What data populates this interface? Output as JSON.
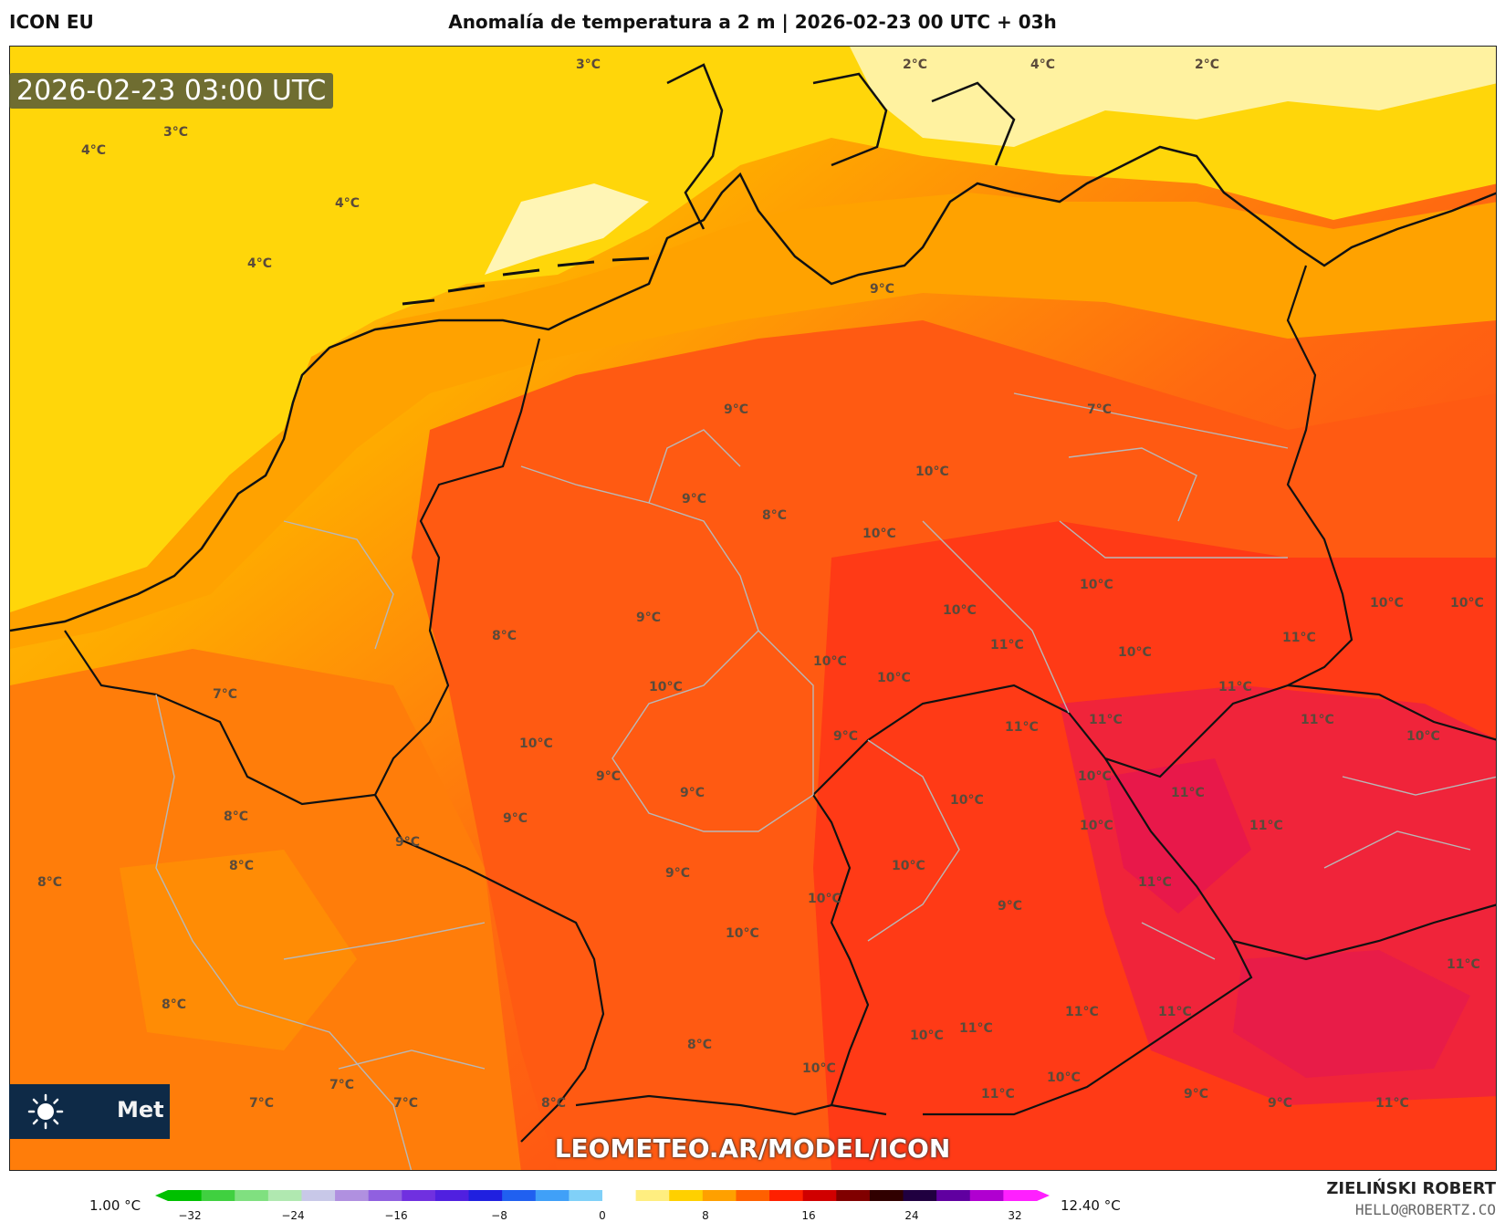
{
  "header": {
    "model": "ICON EU",
    "title": "Anomalía de temperatura a 2 m | 2026-02-23 00 UTC + 03h"
  },
  "map": {
    "timestamp": "2026-02-23 03:00 UTC",
    "watermark": "LEOMETEO.AR/MODEL/ICON",
    "logo_text": "Met",
    "logo_icon": "sun-icon",
    "isotherm_labels": [
      "3°C",
      "2°C",
      "4°C",
      "2°C",
      "3°C",
      "4°C",
      "4°C",
      "4°C",
      "9°C",
      "9°C",
      "7°C",
      "10°C",
      "9°C",
      "8°C",
      "10°C",
      "10°C",
      "10°C",
      "10°C",
      "10°C",
      "11°C",
      "11°C",
      "9°C",
      "8°C",
      "10°C",
      "10°C",
      "11°C",
      "11°C",
      "7°C",
      "10°C",
      "10°C",
      "11°C",
      "11°C",
      "10°C",
      "10°C",
      "9°C",
      "9°C",
      "11°C",
      "10°C",
      "11°C",
      "8°C",
      "9°C",
      "10°C",
      "10°C",
      "8°C",
      "8°C",
      "9°C",
      "11°C",
      "10°C",
      "9°C",
      "9°C",
      "10°C",
      "9°C",
      "11°C",
      "8°C",
      "8°C",
      "10°C",
      "11°C",
      "11°C",
      "11°C",
      "10°C",
      "7°C",
      "7°C",
      "7°C",
      "8°C",
      "10°C",
      "11°C",
      "10°C",
      "9°C",
      "9°C",
      "11°C"
    ]
  },
  "colorbar": {
    "min_label": "1.00 °C",
    "max_label": "12.40 °C",
    "ticks": [
      "−32",
      "−24",
      "−16",
      "−8",
      "0",
      "8",
      "16",
      "24",
      "32"
    ],
    "colors": [
      "#00c000",
      "#40d040",
      "#80e080",
      "#b0e8b0",
      "#c8c8e8",
      "#b090e0",
      "#9060e0",
      "#7030e0",
      "#5020e0",
      "#2020e0",
      "#2060f0",
      "#40a0f8",
      "#80d0f8",
      "#ffffff",
      "#ffee80",
      "#ffd000",
      "#ffa000",
      "#ff6000",
      "#ff2000",
      "#d00000",
      "#800000",
      "#300000",
      "#200040",
      "#6000a0",
      "#b000d0",
      "#ff20ff"
    ]
  },
  "credits": {
    "author": "ZIELIŃSKI ROBERT",
    "email": "HELLO@ROBERTZ.CO"
  }
}
